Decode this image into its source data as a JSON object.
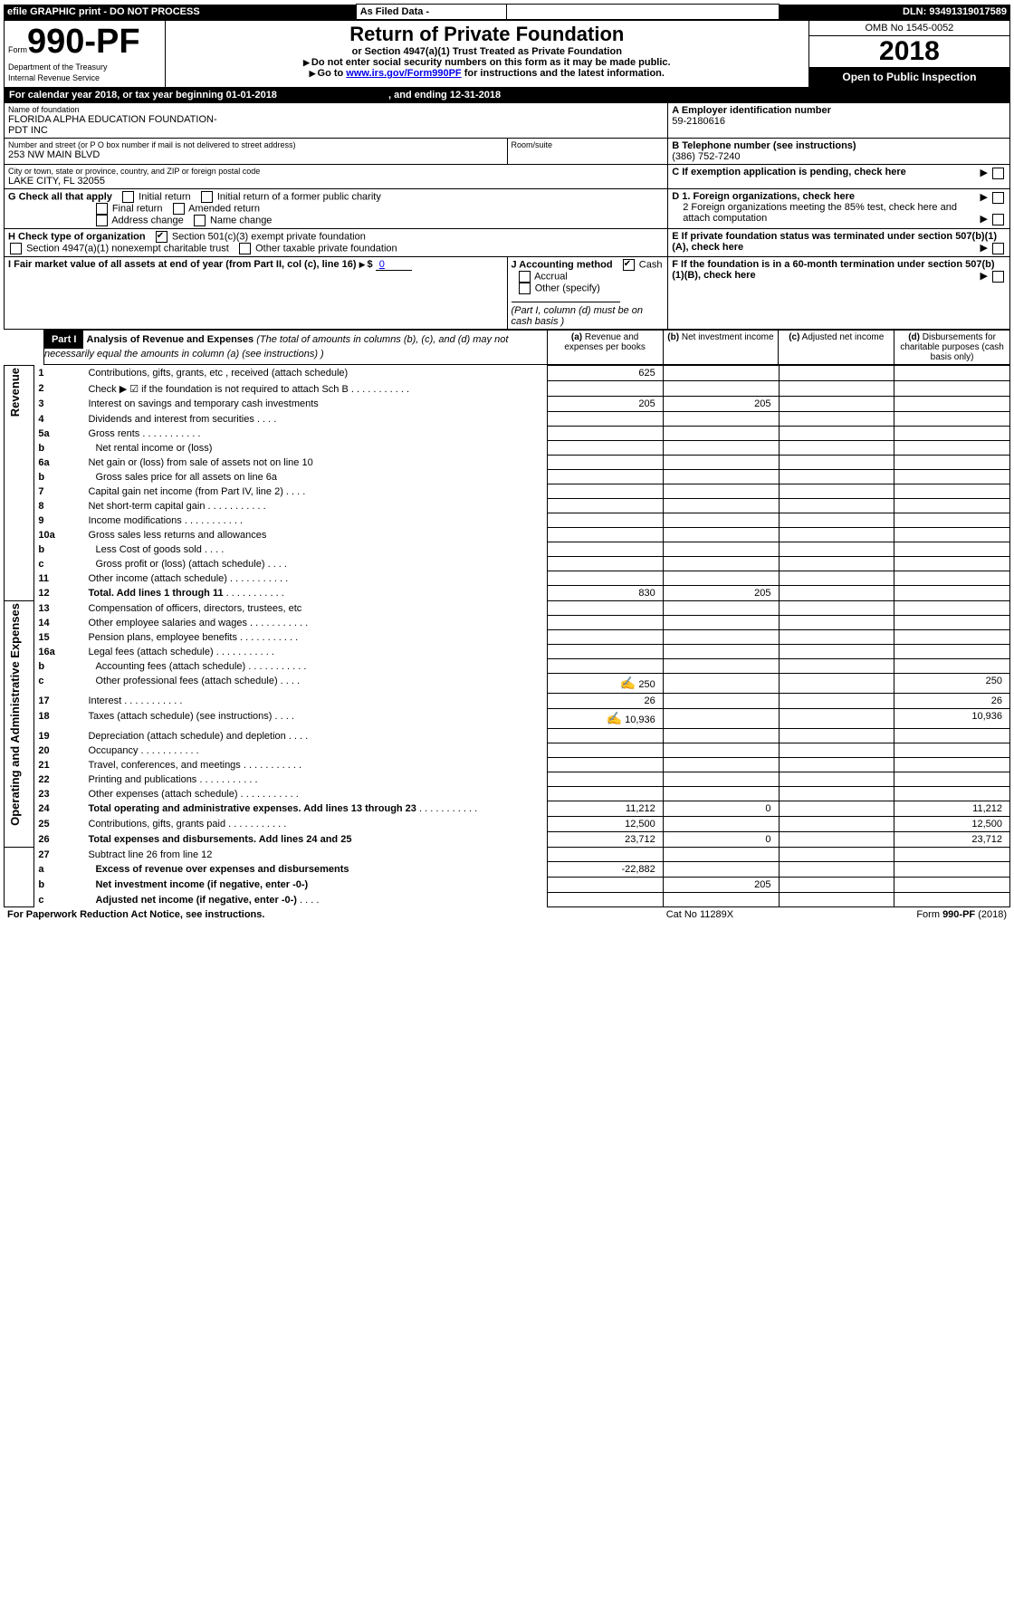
{
  "topbar": {
    "efile": "efile GRAPHIC print - DO NOT PROCESS",
    "asfiled": "As Filed Data -",
    "dln_label": "DLN:",
    "dln": "93491319017589"
  },
  "header": {
    "form_prefix": "Form",
    "form_no": "990-PF",
    "dept1": "Department of the Treasury",
    "dept2": "Internal Revenue Service",
    "title": "Return of Private Foundation",
    "subtitle": "or Section 4947(a)(1) Trust Treated as Private Foundation",
    "note1": "Do not enter social security numbers on this form as it may be made public.",
    "note2_pre": "Go to ",
    "note2_link": "www.irs.gov/Form990PF",
    "note2_post": " for instructions and the latest information.",
    "omb": "OMB No 1545-0052",
    "year": "2018",
    "open": "Open to Public Inspection"
  },
  "cal": {
    "text1": "For calendar year 2018, or tax year beginning ",
    "begin": "01-01-2018",
    "text2": " , and ending ",
    "end": "12-31-2018"
  },
  "ident": {
    "name_label": "Name of foundation",
    "name": "FLORIDA ALPHA EDUCATION FOUNDATION-\nPDT INC",
    "addr_label": "Number and street (or P O  box number if mail is not delivered to street address)",
    "addr": "253 NW MAIN BLVD",
    "room_label": "Room/suite",
    "city_label": "City or town, state or province, country, and ZIP or foreign postal code",
    "city": "LAKE CITY, FL  32055",
    "A_label": "A Employer identification number",
    "A_val": "59-2180616",
    "B_label": "B Telephone number (see instructions)",
    "B_val": "(386) 752-7240",
    "C_label": "C If exemption application is pending, check here"
  },
  "G": {
    "label": "G Check all that apply",
    "o1": "Initial return",
    "o2": "Initial return of a former public charity",
    "o3": "Final return",
    "o4": "Amended return",
    "o5": "Address change",
    "o6": "Name change"
  },
  "H": {
    "label": "H Check type of organization",
    "o1": "Section 501(c)(3) exempt private foundation",
    "o2": "Section 4947(a)(1) nonexempt charitable trust",
    "o3": "Other taxable private foundation"
  },
  "D": {
    "d1": "D 1. Foreign organizations, check here",
    "d2": "2 Foreign organizations meeting the 85% test, check here and attach computation"
  },
  "E": "E  If private foundation status was terminated under section 507(b)(1)(A), check here",
  "I": {
    "label": "I Fair market value of all assets at end of year (from Part II, col  (c), line 16)",
    "val_label": "$",
    "val": "0"
  },
  "J": {
    "label": "J Accounting method",
    "cash": "Cash",
    "accrual": "Accrual",
    "other": "Other (specify)",
    "note": "(Part I, column (d) must be on cash basis )"
  },
  "F": "F  If the foundation is in a 60-month termination under section 507(b)(1)(B), check here",
  "part1": {
    "label": "Part I",
    "title": "Analysis of Revenue and Expenses",
    "title_note": "(The total of amounts in columns (b), (c), and (d) may not necessarily equal the amounts in column (a) (see instructions) )",
    "col_a": "Revenue and expenses per books",
    "col_b": "Net investment income",
    "col_c": "Adjusted net income",
    "col_d": "Disbursements for charitable purposes (cash basis only)"
  },
  "sections": {
    "rev": "Revenue",
    "exp": "Operating and Administrative Expenses"
  },
  "rows": [
    {
      "n": "1",
      "d": "Contributions, gifts, grants, etc , received (attach schedule)",
      "a": "625"
    },
    {
      "n": "2",
      "d": "Check ▶ ☑ if the foundation is not required to attach Sch B",
      "dots": true
    },
    {
      "n": "3",
      "d": "Interest on savings and temporary cash investments",
      "a": "205",
      "b": "205"
    },
    {
      "n": "4",
      "d": "Dividends and interest from securities",
      "dots": "short"
    },
    {
      "n": "5a",
      "d": "Gross rents",
      "dots": true
    },
    {
      "n": "b",
      "d": "Net rental income or (loss)",
      "indent": true
    },
    {
      "n": "6a",
      "d": "Net gain or (loss) from sale of assets not on line 10"
    },
    {
      "n": "b",
      "d": "Gross sales price for all assets on line 6a",
      "indent": true
    },
    {
      "n": "7",
      "d": "Capital gain net income (from Part IV, line 2)",
      "dots": "short"
    },
    {
      "n": "8",
      "d": "Net short-term capital gain",
      "dots": true
    },
    {
      "n": "9",
      "d": "Income modifications",
      "dots": true
    },
    {
      "n": "10a",
      "d": "Gross sales less returns and allowances"
    },
    {
      "n": "b",
      "d": "Less  Cost of goods sold",
      "dots": "short",
      "indent": true
    },
    {
      "n": "c",
      "d": "Gross profit or (loss) (attach schedule)",
      "dots": "short",
      "indent": true
    },
    {
      "n": "11",
      "d": "Other income (attach schedule)",
      "dots": true
    },
    {
      "n": "12",
      "d": "Total. Add lines 1 through 11",
      "dots": true,
      "bold": true,
      "a": "830",
      "b": "205"
    }
  ],
  "exp_rows": [
    {
      "n": "13",
      "d": "Compensation of officers, directors, trustees, etc"
    },
    {
      "n": "14",
      "d": "Other employee salaries and wages",
      "dots": true
    },
    {
      "n": "15",
      "d": "Pension plans, employee benefits",
      "dots": true
    },
    {
      "n": "16a",
      "d": "Legal fees (attach schedule)",
      "dots": true
    },
    {
      "n": "b",
      "d": "Accounting fees (attach schedule)",
      "dots": true,
      "indent": true
    },
    {
      "n": "c",
      "d": "Other professional fees (attach schedule)",
      "dots": "short",
      "indent": true,
      "icon": true,
      "a": "250",
      "dcol": "250"
    },
    {
      "n": "17",
      "d": "Interest",
      "dots": true,
      "a": "26",
      "dcol": "26"
    },
    {
      "n": "18",
      "d": "Taxes (attach schedule) (see instructions)",
      "dots": "short",
      "icon": true,
      "a": "10,936",
      "dcol": "10,936"
    },
    {
      "n": "19",
      "d": "Depreciation (attach schedule) and depletion",
      "dots": "short"
    },
    {
      "n": "20",
      "d": "Occupancy",
      "dots": true
    },
    {
      "n": "21",
      "d": "Travel, conferences, and meetings",
      "dots": true
    },
    {
      "n": "22",
      "d": "Printing and publications",
      "dots": true
    },
    {
      "n": "23",
      "d": "Other expenses (attach schedule)",
      "dots": true
    },
    {
      "n": "24",
      "d": "Total operating and administrative expenses. Add lines 13 through 23",
      "dots": true,
      "bold": true,
      "a": "11,212",
      "b": "0",
      "dcol": "11,212"
    },
    {
      "n": "25",
      "d": "Contributions, gifts, grants paid",
      "dots": true,
      "a": "12,500",
      "dcol": "12,500"
    },
    {
      "n": "26",
      "d": "Total expenses and disbursements. Add lines 24 and 25",
      "bold": true,
      "a": "23,712",
      "b": "0",
      "dcol": "23,712"
    }
  ],
  "net_rows": [
    {
      "n": "27",
      "d": "Subtract line 26 from line 12"
    },
    {
      "n": "a",
      "d": "Excess of revenue over expenses and disbursements",
      "bold": true,
      "indent": true,
      "a": "-22,882"
    },
    {
      "n": "b",
      "d": "Net investment income (if negative, enter -0-)",
      "bold": true,
      "indent": true,
      "b": "205"
    },
    {
      "n": "c",
      "d": "Adjusted net income (if negative, enter -0-)",
      "bold": true,
      "indent": true,
      "dots": "short"
    }
  ],
  "footer": {
    "left": "For Paperwork Reduction Act Notice, see instructions.",
    "mid": "Cat  No  11289X",
    "right": "Form 990-PF (2018)"
  }
}
